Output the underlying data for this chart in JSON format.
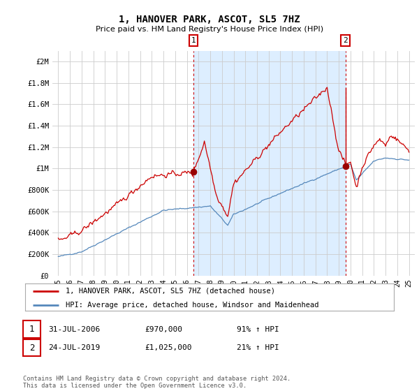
{
  "title": "1, HANOVER PARK, ASCOT, SL5 7HZ",
  "subtitle": "Price paid vs. HM Land Registry's House Price Index (HPI)",
  "ylabel_ticks": [
    "£0",
    "£200K",
    "£400K",
    "£600K",
    "£800K",
    "£1M",
    "£1.2M",
    "£1.4M",
    "£1.6M",
    "£1.8M",
    "£2M"
  ],
  "ytick_values": [
    0,
    200000,
    400000,
    600000,
    800000,
    1000000,
    1200000,
    1400000,
    1600000,
    1800000,
    2000000
  ],
  "ylim": [
    0,
    2100000
  ],
  "xlim_start": 1995.0,
  "xlim_end": 2025.5,
  "legend_line1": "1, HANOVER PARK, ASCOT, SL5 7HZ (detached house)",
  "legend_line2": "HPI: Average price, detached house, Windsor and Maidenhead",
  "annotation1_label": "1",
  "annotation1_date": "31-JUL-2006",
  "annotation1_price": "£970,000",
  "annotation1_hpi": "91% ↑ HPI",
  "annotation2_label": "2",
  "annotation2_date": "24-JUL-2019",
  "annotation2_price": "£1,025,000",
  "annotation2_hpi": "21% ↑ HPI",
  "footer": "Contains HM Land Registry data © Crown copyright and database right 2024.\nThis data is licensed under the Open Government Licence v3.0.",
  "sale1_x": 2006.58,
  "sale1_y": 970000,
  "sale2_x": 2019.56,
  "sale2_y": 1025000,
  "sale2_peak_y": 1750000,
  "dotted_line1_x": 2006.58,
  "dotted_line2_x": 2019.56,
  "property_color": "#cc0000",
  "hpi_color": "#5588bb",
  "shade_color": "#ddeeff",
  "grid_color": "#cccccc",
  "background_color": "#ffffff"
}
